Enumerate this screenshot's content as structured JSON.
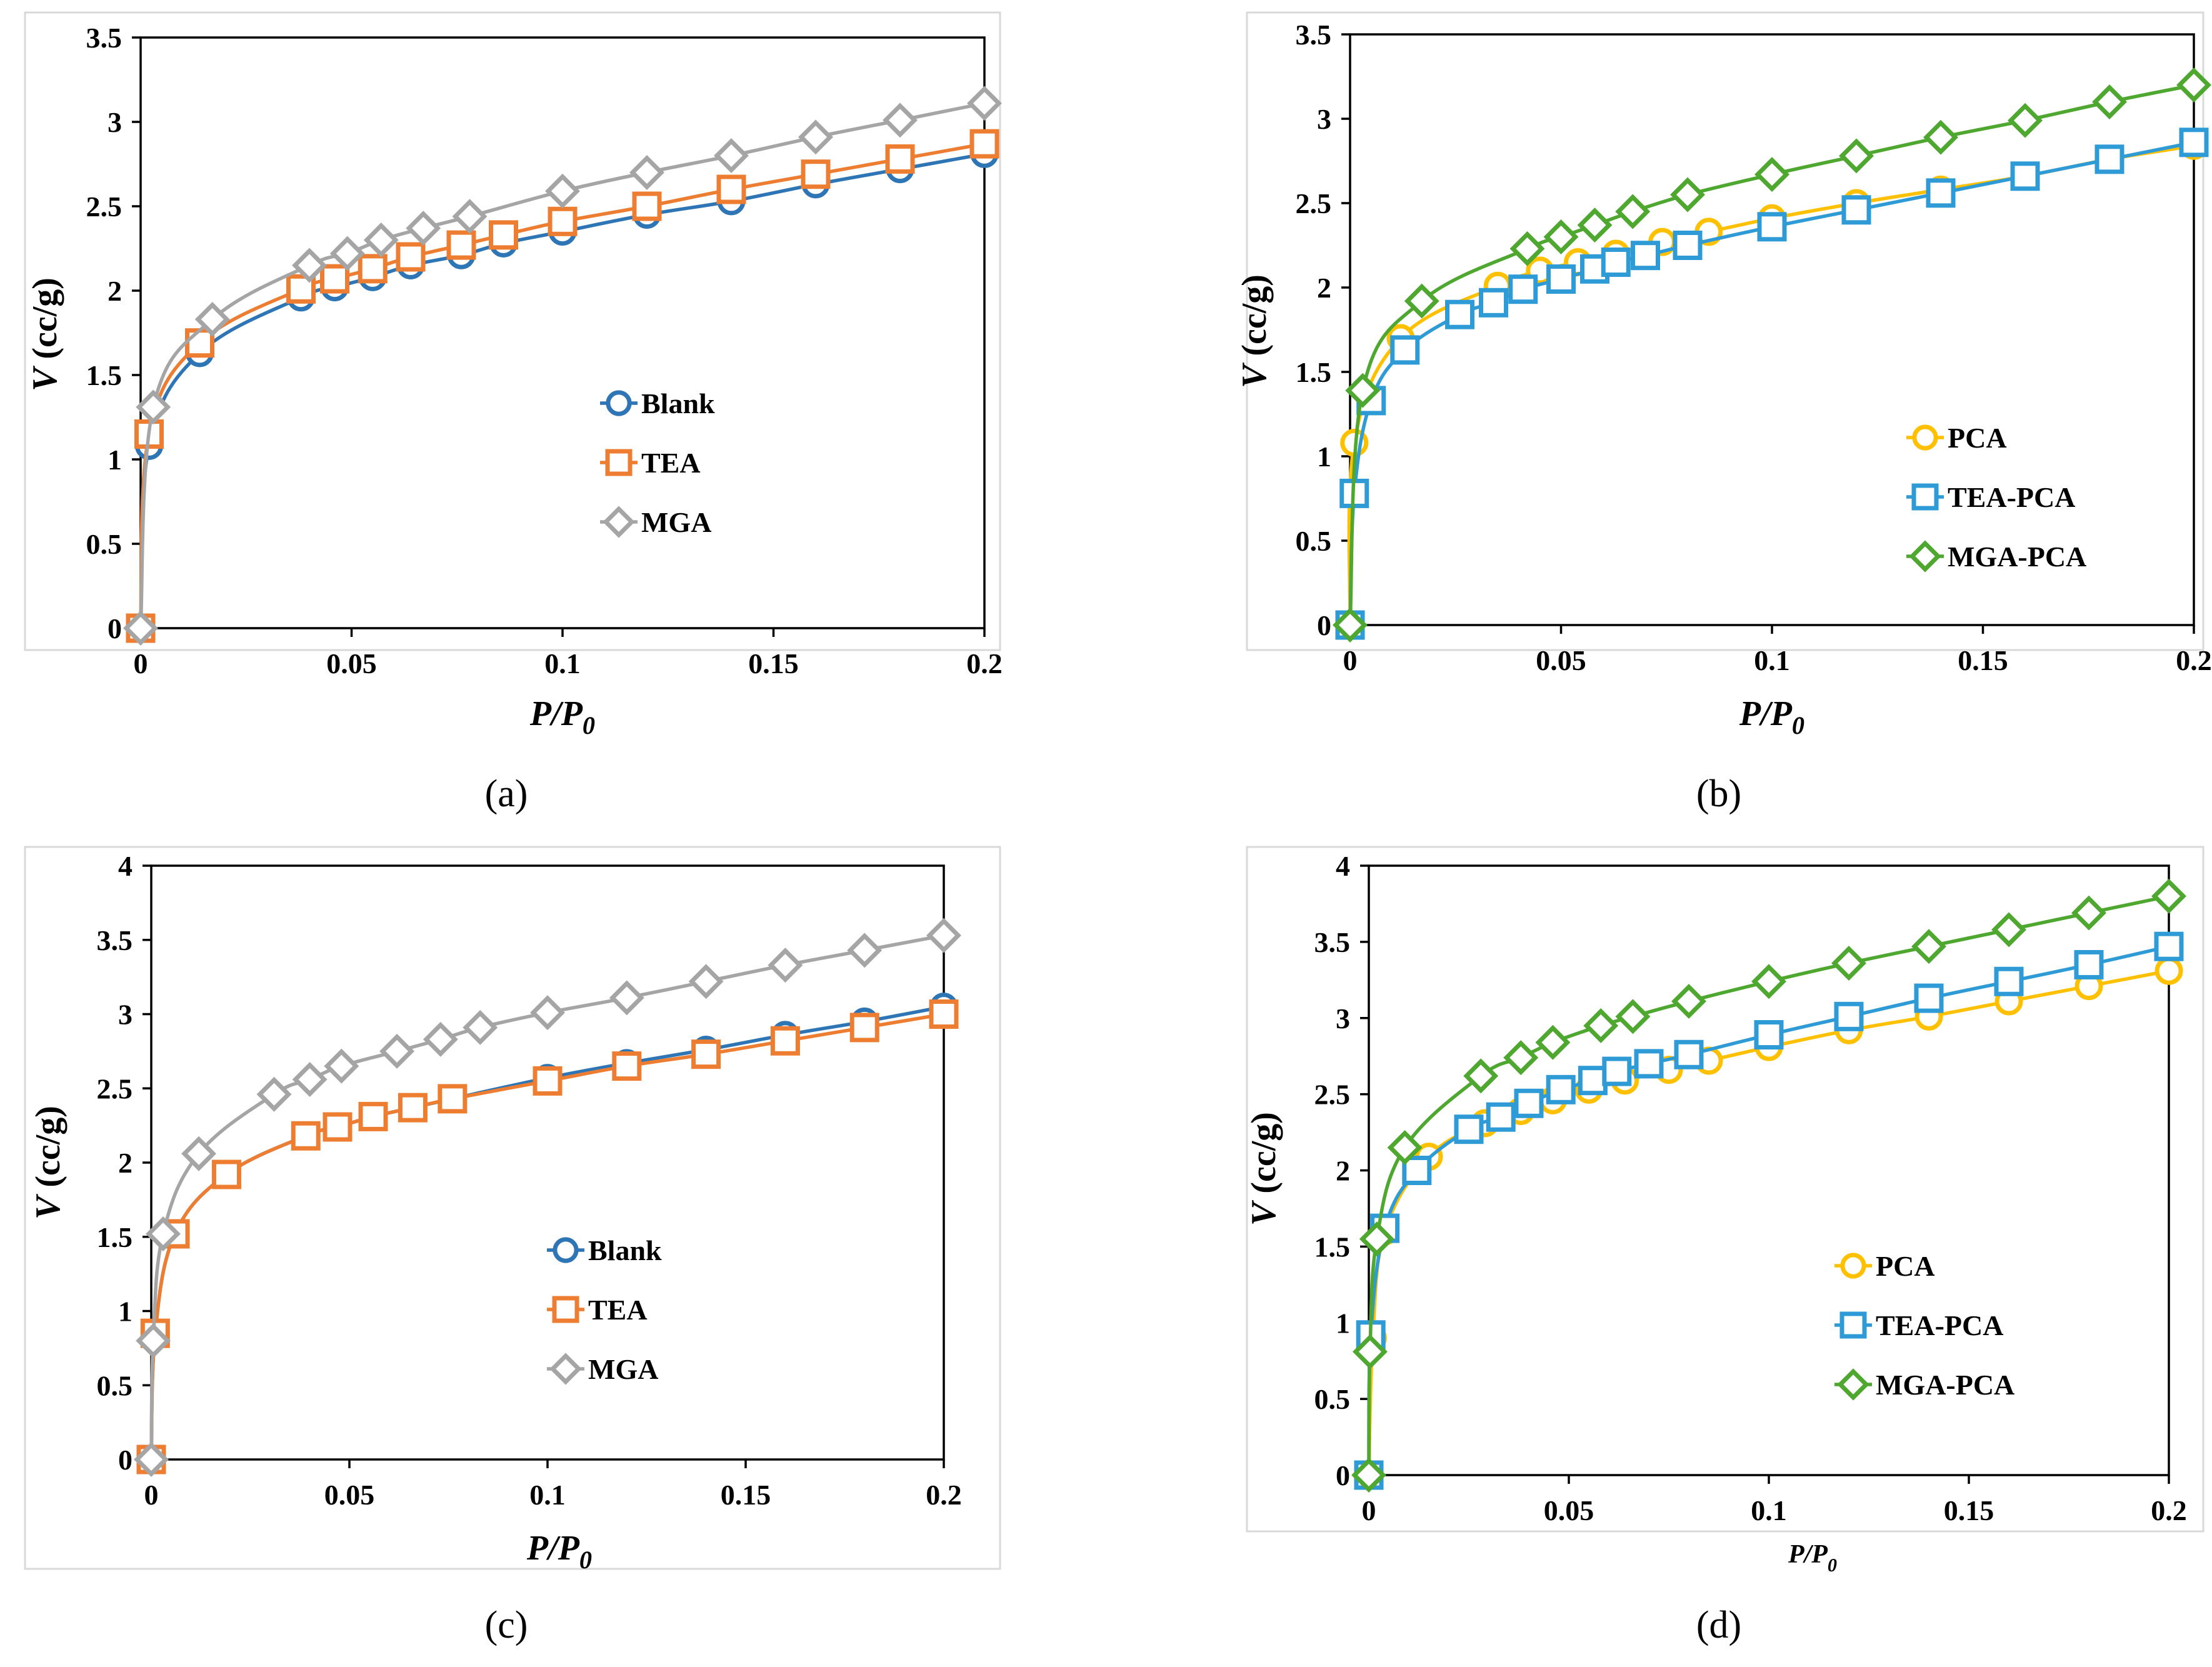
{
  "colors": {
    "blank": "#2E75B6",
    "tea": "#ED7D31",
    "mga": "#A5A5A5",
    "pca": "#FFC000",
    "tea_pca": "#2E9BD6",
    "mga_pca": "#4EA72E"
  },
  "chart_data": [
    {
      "id": "a",
      "type": "scatter",
      "caption": "(a)",
      "xlabel_main": "P/P",
      "xlabel_sub": "0",
      "ylabel_main": "V",
      "ylabel_rest": " (cc/g)",
      "xlim": [
        0,
        0.2
      ],
      "ylim": [
        0,
        3.5
      ],
      "xticks": [
        0,
        0.05,
        0.1,
        0.15,
        0.2
      ],
      "xtick_labels": [
        "0",
        "0.05",
        "0.1",
        "0.15",
        "0.2"
      ],
      "yticks": [
        0,
        0.5,
        1,
        1.5,
        2,
        2.5,
        3,
        3.5
      ],
      "ytick_labels": [
        "0",
        "0.5",
        "1",
        "1.5",
        "2",
        "2.5",
        "3",
        "3.5"
      ],
      "grid": false,
      "legend": "center-right",
      "series": [
        {
          "name": "Blank",
          "color": "#2E75B6",
          "marker": "circle",
          "x": [
            0,
            0.002,
            0.014,
            0.038,
            0.046,
            0.055,
            0.064,
            0.076,
            0.086,
            0.1,
            0.12,
            0.14,
            0.16,
            0.18,
            0.2
          ],
          "y": [
            0,
            1.08,
            1.63,
            1.96,
            2.02,
            2.08,
            2.15,
            2.21,
            2.28,
            2.35,
            2.45,
            2.53,
            2.63,
            2.72,
            2.81
          ]
        },
        {
          "name": "TEA",
          "color": "#ED7D31",
          "marker": "square",
          "x": [
            0,
            0.002,
            0.014,
            0.038,
            0.046,
            0.055,
            0.064,
            0.076,
            0.086,
            0.1,
            0.12,
            0.14,
            0.16,
            0.18,
            0.2
          ],
          "y": [
            0,
            1.15,
            1.69,
            2.01,
            2.07,
            2.13,
            2.2,
            2.27,
            2.33,
            2.41,
            2.5,
            2.6,
            2.69,
            2.78,
            2.87
          ]
        },
        {
          "name": "MGA",
          "color": "#A5A5A5",
          "marker": "diamond",
          "x": [
            0,
            0.003,
            0.017,
            0.04,
            0.049,
            0.057,
            0.067,
            0.078,
            0.1,
            0.12,
            0.14,
            0.16,
            0.18,
            0.2
          ],
          "y": [
            0,
            1.31,
            1.83,
            2.15,
            2.22,
            2.3,
            2.37,
            2.44,
            2.59,
            2.7,
            2.8,
            2.91,
            3.01,
            3.11
          ]
        }
      ]
    },
    {
      "id": "b",
      "type": "scatter",
      "caption": "(b)",
      "xlabel_main": "P/P",
      "xlabel_sub": "0",
      "ylabel_main": "V",
      "ylabel_rest": " (cc/g)",
      "xlim": [
        0,
        0.2
      ],
      "ylim": [
        0,
        3.5
      ],
      "xticks": [
        0,
        0.05,
        0.1,
        0.15,
        0.2
      ],
      "xtick_labels": [
        "0",
        "0.05",
        "0.1",
        "0.15",
        "0.2"
      ],
      "yticks": [
        0,
        0.5,
        1,
        1.5,
        2,
        2.5,
        3,
        3.5
      ],
      "ytick_labels": [
        "0",
        "0.5",
        "1",
        "1.5",
        "2",
        "2.5",
        "3",
        "3.5"
      ],
      "grid": false,
      "legend": "bottom-right",
      "series": [
        {
          "name": "PCA",
          "color": "#FFC000",
          "marker": "circle",
          "x": [
            0,
            0.001,
            0.012,
            0.035,
            0.045,
            0.054,
            0.063,
            0.074,
            0.085,
            0.1,
            0.12,
            0.14,
            0.16,
            0.18,
            0.2
          ],
          "y": [
            0,
            1.08,
            1.7,
            2.01,
            2.1,
            2.15,
            2.2,
            2.27,
            2.33,
            2.41,
            2.5,
            2.58,
            2.66,
            2.76,
            2.84
          ]
        },
        {
          "name": "TEA-PCA",
          "color": "#2E9BD6",
          "marker": "square",
          "x": [
            0,
            0.001,
            0.005,
            0.013,
            0.026,
            0.034,
            0.041,
            0.05,
            0.058,
            0.063,
            0.07,
            0.08,
            0.1,
            0.12,
            0.14,
            0.16,
            0.18,
            0.2
          ],
          "y": [
            0,
            0.78,
            1.33,
            1.63,
            1.84,
            1.91,
            1.99,
            2.05,
            2.11,
            2.15,
            2.19,
            2.25,
            2.36,
            2.46,
            2.56,
            2.66,
            2.76,
            2.86
          ]
        },
        {
          "name": "MGA-PCA",
          "color": "#4EA72E",
          "marker": "diamond",
          "x": [
            0,
            0.003,
            0.017,
            0.042,
            0.05,
            0.058,
            0.067,
            0.08,
            0.1,
            0.12,
            0.14,
            0.16,
            0.18,
            0.2
          ],
          "y": [
            0,
            1.39,
            1.92,
            2.23,
            2.3,
            2.37,
            2.45,
            2.55,
            2.67,
            2.78,
            2.89,
            2.99,
            3.1,
            3.2
          ]
        }
      ]
    },
    {
      "id": "c",
      "type": "scatter",
      "caption": "(c)",
      "xlabel_main": "P/P",
      "xlabel_sub": "0",
      "ylabel_main": "V",
      "ylabel_rest": " (cc/g)",
      "xlim": [
        0,
        0.2
      ],
      "ylim": [
        0,
        4
      ],
      "xticks": [
        0,
        0.05,
        0.1,
        0.15,
        0.2
      ],
      "xtick_labels": [
        "0",
        "0.05",
        "0.1",
        "0.15",
        "0.2"
      ],
      "yticks": [
        0,
        0.5,
        1,
        1.5,
        2,
        2.5,
        3,
        3.5,
        4
      ],
      "ytick_labels": [
        "0",
        "0.5",
        "1",
        "1.5",
        "2",
        "2.5",
        "3",
        "3.5",
        "4"
      ],
      "grid": false,
      "legend": "center-right",
      "series": [
        {
          "name": "Blank",
          "color": "#2E75B6",
          "marker": "circle",
          "x": [
            0,
            0.001,
            0.006,
            0.019,
            0.039,
            0.047,
            0.056,
            0.066,
            0.076,
            0.1,
            0.12,
            0.14,
            0.16,
            0.18,
            0.2
          ],
          "y": [
            0,
            0.85,
            1.52,
            1.92,
            2.18,
            2.24,
            2.31,
            2.37,
            2.43,
            2.57,
            2.67,
            2.76,
            2.86,
            2.95,
            3.05
          ]
        },
        {
          "name": "TEA",
          "color": "#ED7D31",
          "marker": "square",
          "x": [
            0,
            0.001,
            0.006,
            0.019,
            0.039,
            0.047,
            0.056,
            0.066,
            0.076,
            0.1,
            0.12,
            0.14,
            0.16,
            0.18,
            0.2
          ],
          "y": [
            0,
            0.85,
            1.52,
            1.92,
            2.18,
            2.24,
            2.31,
            2.37,
            2.43,
            2.55,
            2.65,
            2.73,
            2.82,
            2.91,
            3.0
          ]
        },
        {
          "name": "MGA",
          "color": "#A5A5A5",
          "marker": "diamond",
          "x": [
            0,
            0.0005,
            0.003,
            0.012,
            0.031,
            0.04,
            0.048,
            0.062,
            0.073,
            0.083,
            0.1,
            0.12,
            0.14,
            0.16,
            0.18,
            0.2
          ],
          "y": [
            0,
            0.8,
            1.52,
            2.06,
            2.46,
            2.56,
            2.65,
            2.75,
            2.83,
            2.91,
            3.01,
            3.11,
            3.22,
            3.33,
            3.43,
            3.53
          ]
        }
      ]
    },
    {
      "id": "d",
      "type": "scatter",
      "caption": "(d)",
      "xlabel_main": "P/P",
      "xlabel_sub": "0",
      "ylabel_main": "V",
      "ylabel_rest": " (cc/g)",
      "xlim": [
        0,
        0.2
      ],
      "ylim": [
        0,
        4
      ],
      "xticks": [
        0,
        0.05,
        0.1,
        0.15,
        0.2
      ],
      "xtick_labels": [
        "0",
        "0.05",
        "0.1",
        "0.15",
        "0.2"
      ],
      "yticks": [
        0,
        0.5,
        1,
        1.5,
        2,
        2.5,
        3,
        3.5,
        4
      ],
      "ytick_labels": [
        "0",
        "0.5",
        "1",
        "1.5",
        "2",
        "2.5",
        "3",
        "3.5",
        "4"
      ],
      "grid": false,
      "legend": "bottom-right",
      "series": [
        {
          "name": "PCA",
          "color": "#FFC000",
          "marker": "circle",
          "x": [
            0,
            0.001,
            0.004,
            0.015,
            0.029,
            0.038,
            0.046,
            0.055,
            0.064,
            0.075,
            0.085,
            0.1,
            0.12,
            0.14,
            0.16,
            0.18,
            0.2
          ],
          "y": [
            0,
            0.9,
            1.6,
            2.09,
            2.31,
            2.39,
            2.46,
            2.53,
            2.59,
            2.66,
            2.72,
            2.81,
            2.92,
            3.01,
            3.11,
            3.21,
            3.31
          ]
        },
        {
          "name": "TEA-PCA",
          "color": "#2E9BD6",
          "marker": "square",
          "x": [
            0,
            0.0005,
            0.004,
            0.012,
            0.025,
            0.033,
            0.04,
            0.048,
            0.056,
            0.062,
            0.07,
            0.08,
            0.1,
            0.12,
            0.14,
            0.16,
            0.18,
            0.2
          ],
          "y": [
            0,
            0.92,
            1.62,
            2.0,
            2.27,
            2.35,
            2.44,
            2.53,
            2.59,
            2.65,
            2.7,
            2.76,
            2.89,
            3.01,
            3.13,
            3.24,
            3.35,
            3.47
          ]
        },
        {
          "name": "MGA-PCA",
          "color": "#4EA72E",
          "marker": "diamond",
          "x": [
            0,
            0.0003,
            0.002,
            0.009,
            0.028,
            0.038,
            0.046,
            0.058,
            0.066,
            0.08,
            0.1,
            0.12,
            0.14,
            0.16,
            0.18,
            0.2
          ],
          "y": [
            0,
            0.81,
            1.55,
            2.15,
            2.62,
            2.74,
            2.84,
            2.95,
            3.01,
            3.11,
            3.24,
            3.36,
            3.47,
            3.58,
            3.69,
            3.8
          ]
        }
      ]
    }
  ]
}
